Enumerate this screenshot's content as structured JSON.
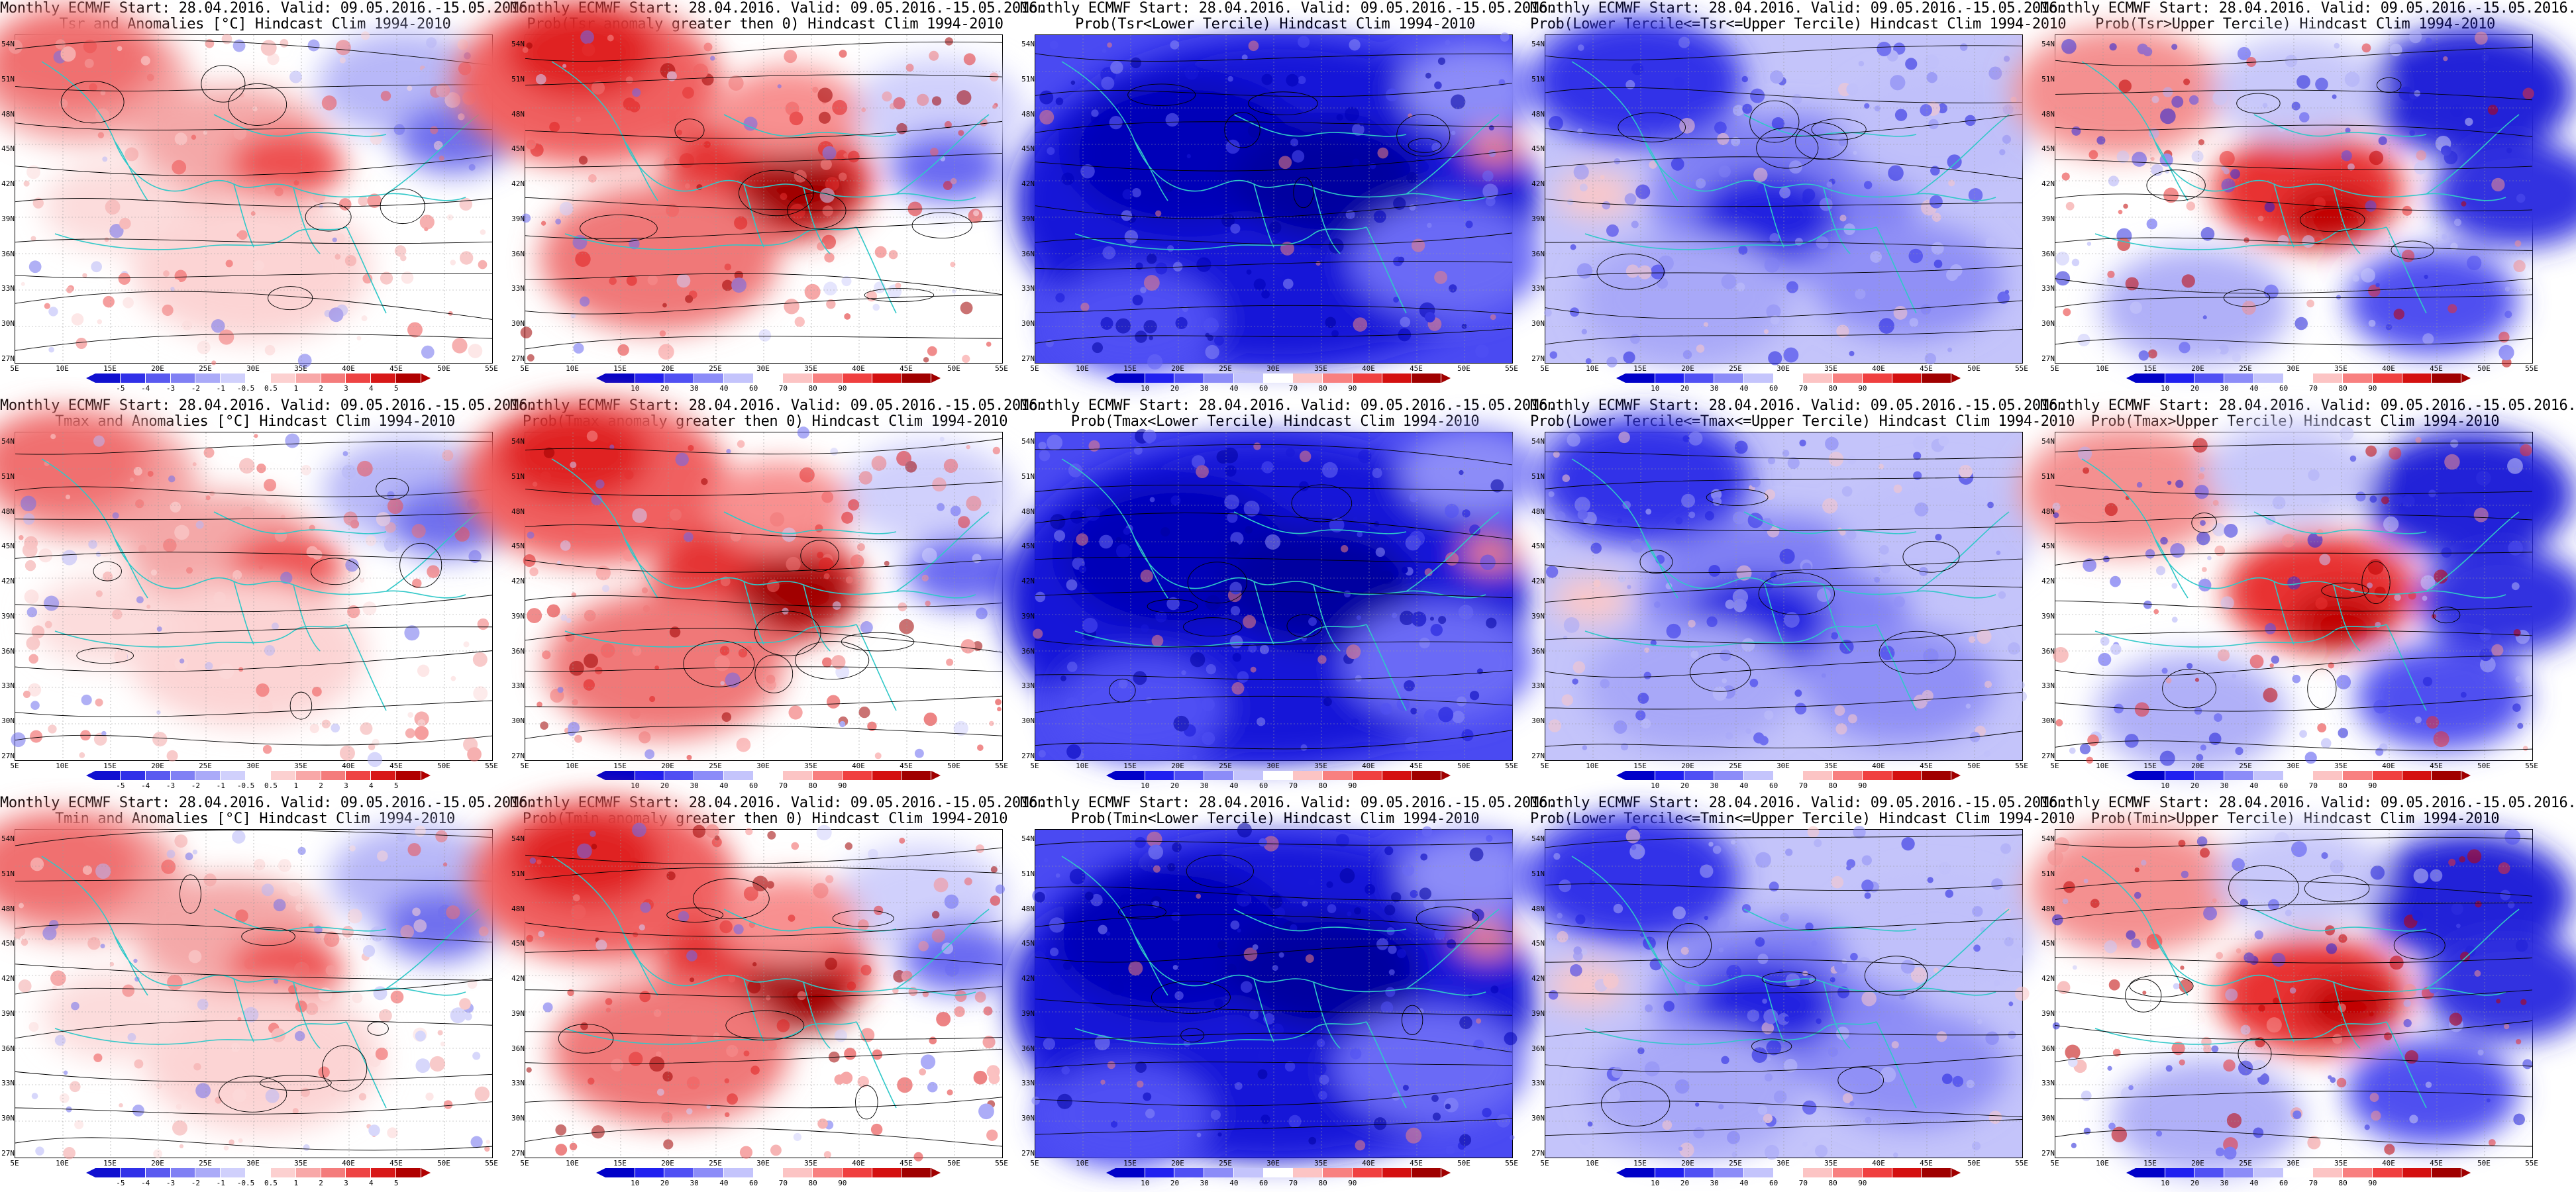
{
  "panels": [
    {
      "title_line1": "Monthly ECMWF Start: 28.04.2016. Valid: 09.05.2016.-15.05.2016.",
      "title_line2": "Tsr and Anomalies [°C] Hindcast Clim 1994-2010",
      "type": "anomaly"
    },
    {
      "title_line1": "Monthly ECMWF Start: 28.04.2016. Valid: 09.05.2016.-15.05.2016.",
      "title_line2": "Prob(Tsr anomaly greater then 0) Hindcast Clim 1994-2010",
      "type": "prob_warm"
    },
    {
      "title_line1": "Monthly ECMWF Start: 28.04.2016. Valid: 09.05.2016.-15.05.2016.",
      "title_line2": "Prob(Tsr<Lower Tercile) Hindcast Clim 1994-2010",
      "type": "prob_cold"
    },
    {
      "title_line1": "Monthly ECMWF Start: 28.04.2016. Valid: 09.05.2016.-15.05.2016.",
      "title_line2": "Prob(Lower Tercile<=Tsr<=Upper Tercile) Hindcast Clim 1994-2010",
      "type": "prob_mid"
    },
    {
      "title_line1": "Monthly ECMWF Start: 28.04.2016. Valid: 09.05.2016.-15.05.2016.",
      "title_line2": "Prob(Tsr>Upper Tercile) Hindcast Clim 1994-2010",
      "type": "prob_upper"
    },
    {
      "title_line1": "Monthly ECMWF Start: 28.04.2016. Valid: 09.05.2016.-15.05.2016.",
      "title_line2": "Tmax and Anomalies [°C] Hindcast Clim 1994-2010",
      "type": "anomaly"
    },
    {
      "title_line1": "Monthly ECMWF Start: 28.04.2016. Valid: 09.05.2016.-15.05.2016.",
      "title_line2": "Prob(Tmax anomaly greater then 0) Hindcast Clim 1994-2010",
      "type": "prob_warm"
    },
    {
      "title_line1": "Monthly ECMWF Start: 28.04.2016. Valid: 09.05.2016.-15.05.2016.",
      "title_line2": "Prob(Tmax<Lower Tercile) Hindcast Clim 1994-2010",
      "type": "prob_cold"
    },
    {
      "title_line1": "Monthly ECMWF Start: 28.04.2016. Valid: 09.05.2016.-15.05.2016.",
      "title_line2": "Prob(Lower Tercile<=Tmax<=Upper Tercile) Hindcast Clim 1994-2010",
      "type": "prob_mid"
    },
    {
      "title_line1": "Monthly ECMWF Start: 28.04.2016. Valid: 09.05.2016.-15.05.2016.",
      "title_line2": "Prob(Tmax>Upper Tercile) Hindcast Clim 1994-2010",
      "type": "prob_upper"
    },
    {
      "title_line1": "Monthly ECMWF Start: 28.04.2016. Valid: 09.05.2016.-15.05.2016.",
      "title_line2": "Tmin and Anomalies [°C] Hindcast Clim 1994-2010",
      "type": "anomaly"
    },
    {
      "title_line1": "Monthly ECMWF Start: 28.04.2016. Valid: 09.05.2016.-15.05.2016.",
      "title_line2": "Prob(Tmin anomaly greater then 0) Hindcast Clim 1994-2010",
      "type": "prob_warm"
    },
    {
      "title_line1": "Monthly ECMWF Start: 28.04.2016. Valid: 09.05.2016.-15.05.2016.",
      "title_line2": "Prob(Tmin<Lower Tercile) Hindcast Clim 1994-2010",
      "type": "prob_cold"
    },
    {
      "title_line1": "Monthly ECMWF Start: 28.04.2016. Valid: 09.05.2016.-15.05.2016.",
      "title_line2": "Prob(Lower Tercile<=Tmin<=Upper Tercile) Hindcast Clim 1994-2010",
      "type": "prob_mid"
    },
    {
      "title_line1": "Monthly ECMWF Start: 28.04.2016. Valid: 09.05.2016.-15.05.2016.",
      "title_line2": "Prob(Tmin>Upper Tercile) Hindcast Clim 1994-2010",
      "type": "prob_upper"
    }
  ],
  "lat_labels": [
    "54N",
    "51N",
    "48N",
    "45N",
    "42N",
    "39N",
    "36N",
    "33N",
    "30N",
    "27N"
  ],
  "lon_labels": [
    "5E",
    "10E",
    "15E",
    "20E",
    "25E",
    "30E",
    "35E",
    "40E",
    "45E",
    "50E",
    "55E"
  ],
  "colorbars": {
    "anomaly": {
      "labels": [
        "-5",
        "-4",
        "-3",
        "-2",
        "-1",
        "-0.5",
        "0.5",
        "1",
        "2",
        "3",
        "4",
        "5"
      ],
      "colors": [
        "#1010d0",
        "#3030e8",
        "#5a5af0",
        "#8080f4",
        "#aaaaf8",
        "#d0d0fc",
        "#ffffff",
        "#fcd0d0",
        "#f8a8a8",
        "#f47c7c",
        "#ee4444",
        "#d81818",
        "#b00000"
      ]
    },
    "probability": {
      "labels": [
        "10",
        "20",
        "30",
        "40",
        "60",
        "70",
        "80",
        "90"
      ],
      "colors": [
        "#0000c8",
        "#2020f0",
        "#5050f4",
        "#8c8cf8",
        "#c4c4fc",
        "#ffffff",
        "#fcc4c4",
        "#f88080",
        "#f04040",
        "#d41010",
        "#a00000"
      ]
    }
  },
  "colors": {
    "coastline": "#30c8c8",
    "contour": "#000000"
  }
}
